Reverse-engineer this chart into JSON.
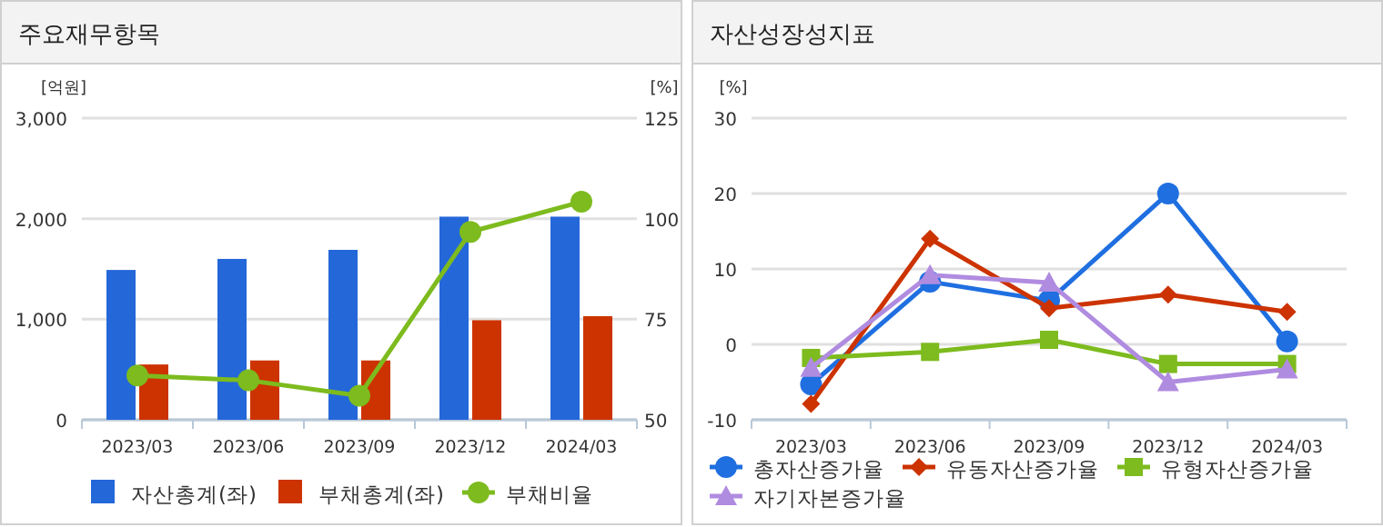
{
  "chart_data": [
    {
      "type": "bar",
      "title": "주요재무항목",
      "ylabel": "[억원]",
      "y2label": "[%]",
      "categories": [
        "2023/03",
        "2023/06",
        "2023/09",
        "2023/12",
        "2024/03"
      ],
      "series": [
        {
          "name": "자산총계(좌)",
          "color": "#2467d9",
          "values": [
            1490,
            1600,
            1690,
            2020,
            2020
          ]
        },
        {
          "name": "부채총계(좌)",
          "color": "#cc3300",
          "values": [
            550,
            590,
            590,
            990,
            1030
          ]
        },
        {
          "name": "부채비율",
          "type": "line",
          "axis": "y2",
          "marker": "circle",
          "color": "#7dbb1e",
          "values": [
            61,
            59.8,
            56,
            96.7,
            104.2
          ]
        }
      ],
      "ylim": [
        0,
        3000
      ],
      "yticks": [
        0,
        {
          "value": 1000,
          "label": "1,000"
        },
        {
          "value": 2000,
          "label": "2,000"
        },
        {
          "value": 3000,
          "label": "3,000"
        }
      ],
      "y2lim": [
        50,
        125
      ],
      "y2ticks": [
        50,
        75,
        100,
        125
      ],
      "grid": "y",
      "legend": "bottom"
    },
    {
      "type": "line",
      "title": "자산성장성지표",
      "ylabel": "[%]",
      "categories": [
        "2023/03",
        "2023/06",
        "2023/09",
        "2023/12",
        "2024/03"
      ],
      "series": [
        {
          "name": "총자산증가율",
          "color": "#1f6fe0",
          "marker": "circle",
          "values": [
            -5.3,
            8.3,
            5.8,
            20,
            0.4
          ]
        },
        {
          "name": "유동자산증가율",
          "color": "#cc3300",
          "marker": "diamond",
          "values": [
            -7.9,
            14,
            4.8,
            6.6,
            4.3
          ]
        },
        {
          "name": "유형자산증가율",
          "color": "#7dbb1e",
          "marker": "square",
          "values": [
            -1.8,
            -1,
            0.6,
            -2.6,
            -2.6
          ]
        },
        {
          "name": "자기자본증가율",
          "color": "#b08ce0",
          "marker": "triangle",
          "values": [
            -3.1,
            9.2,
            8.2,
            -5,
            -3.3
          ]
        }
      ],
      "ylim": [
        -10,
        30
      ],
      "yticks": [
        -10,
        0,
        10,
        20,
        30
      ],
      "grid": "y",
      "legend": "bottom"
    }
  ]
}
